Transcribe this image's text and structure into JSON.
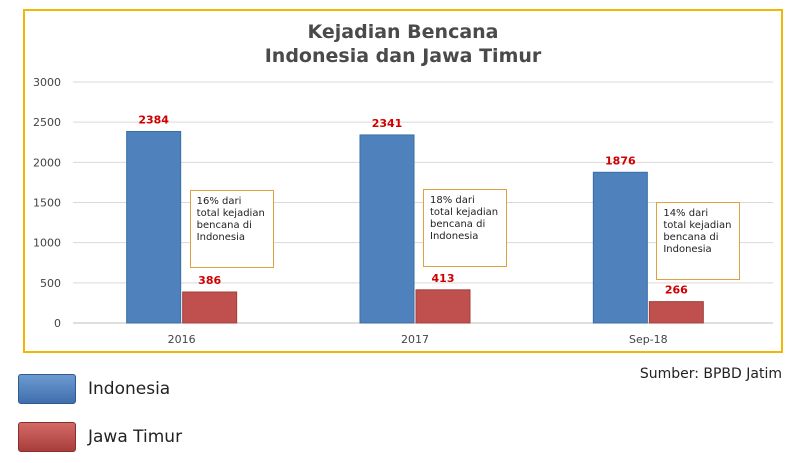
{
  "chart_data": {
    "type": "bar",
    "title": [
      "Kejadian Bencana",
      "Indonesia dan Jawa Timur"
    ],
    "categories": [
      "2016",
      "2017",
      "Sep-18"
    ],
    "series": [
      {
        "name": "Indonesia",
        "values": [
          2384,
          2341,
          1876
        ],
        "color": "#4f81bd",
        "label_color": "#d00000"
      },
      {
        "name": "Jawa Timur",
        "values": [
          386,
          413,
          266
        ],
        "color": "#c0504d",
        "label_color": "#d00000"
      }
    ],
    "ylim": [
      0,
      3000
    ],
    "yticks": [
      0,
      500,
      1000,
      1500,
      2000,
      2500,
      3000
    ],
    "grid": true,
    "legend_position": "bottom-left",
    "annotations": [
      {
        "category": "2016",
        "text": "16% dari total kejadian bencana di Indonesia"
      },
      {
        "category": "2017",
        "text": "18% dari total kejadian bencana di Indonesia"
      },
      {
        "category": "Sep-18",
        "text": "14% dari total kejadian bencana di Indonesia"
      }
    ]
  },
  "source": "Sumber: BPBD Jatim"
}
